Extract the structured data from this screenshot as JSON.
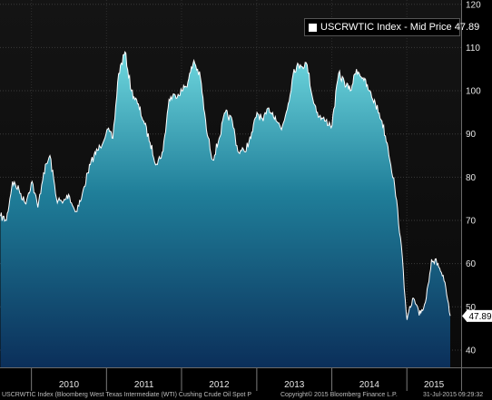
{
  "chart_data": {
    "type": "area",
    "title": "",
    "xlabel": "",
    "ylabel": "",
    "ylim": [
      36,
      121
    ],
    "y_ticks": [
      40,
      50,
      60,
      70,
      80,
      90,
      100,
      110,
      120
    ],
    "x_ticks": [
      "2010",
      "2011",
      "2012",
      "2013",
      "2014",
      "2015"
    ],
    "grid": true,
    "legend": "top-right",
    "last_value_label": "47.89",
    "series": [
      {
        "name": "USCRWTIC Index - Mid Price 47.89",
        "color": "#ffffff",
        "x": [
          "2009-08-03",
          "2009-09-01",
          "2009-10-01",
          "2009-11-02",
          "2009-12-01",
          "2010-01-04",
          "2010-02-01",
          "2010-03-01",
          "2010-04-01",
          "2010-05-03",
          "2010-06-01",
          "2010-07-01",
          "2010-08-02",
          "2010-09-01",
          "2010-10-01",
          "2010-11-01",
          "2010-12-01",
          "2011-01-03",
          "2011-02-01",
          "2011-03-01",
          "2011-04-01",
          "2011-05-02",
          "2011-06-01",
          "2011-07-01",
          "2011-08-01",
          "2011-09-01",
          "2011-10-03",
          "2011-11-01",
          "2011-12-01",
          "2012-01-03",
          "2012-02-01",
          "2012-03-01",
          "2012-04-02",
          "2012-05-01",
          "2012-06-01",
          "2012-07-02",
          "2012-08-01",
          "2012-09-04",
          "2012-10-01",
          "2012-11-01",
          "2012-12-03",
          "2013-01-02",
          "2013-02-01",
          "2013-03-01",
          "2013-04-01",
          "2013-05-01",
          "2013-06-03",
          "2013-07-01",
          "2013-08-01",
          "2013-09-03",
          "2013-10-01",
          "2013-11-01",
          "2013-12-02",
          "2014-01-02",
          "2014-02-03",
          "2014-03-03",
          "2014-04-01",
          "2014-05-01",
          "2014-06-02",
          "2014-07-01",
          "2014-08-01",
          "2014-09-02",
          "2014-10-01",
          "2014-11-03",
          "2014-12-01",
          "2015-01-02",
          "2015-02-02",
          "2015-03-02",
          "2015-04-01",
          "2015-05-01",
          "2015-06-01",
          "2015-07-01",
          "2015-07-31"
        ],
        "values": [
          71,
          70,
          79,
          77,
          74,
          79,
          73,
          81,
          85,
          75,
          74,
          76,
          72,
          75,
          81,
          85,
          87,
          91,
          89,
          104,
          109,
          100,
          97,
          93,
          88,
          83,
          86,
          98,
          99,
          100,
          102,
          107,
          103,
          91,
          84,
          89,
          95,
          93,
          86,
          86,
          89,
          95,
          93,
          96,
          94,
          91,
          97,
          105,
          106,
          106,
          98,
          94,
          93,
          92,
          104,
          102,
          100,
          105,
          103,
          100,
          97,
          93,
          87,
          78,
          66,
          47,
          52,
          48,
          51,
          61,
          60,
          56,
          47.89
        ]
      }
    ]
  },
  "footer": {
    "left": "USCRWTIC Index (Bloomberg West Texas Intermediate (WTI) Cushing Crude Oil Spot P",
    "center": "Copyright© 2015 Bloomberg Finance L.P.",
    "right": "31-Jul-2015 09:29:32"
  }
}
